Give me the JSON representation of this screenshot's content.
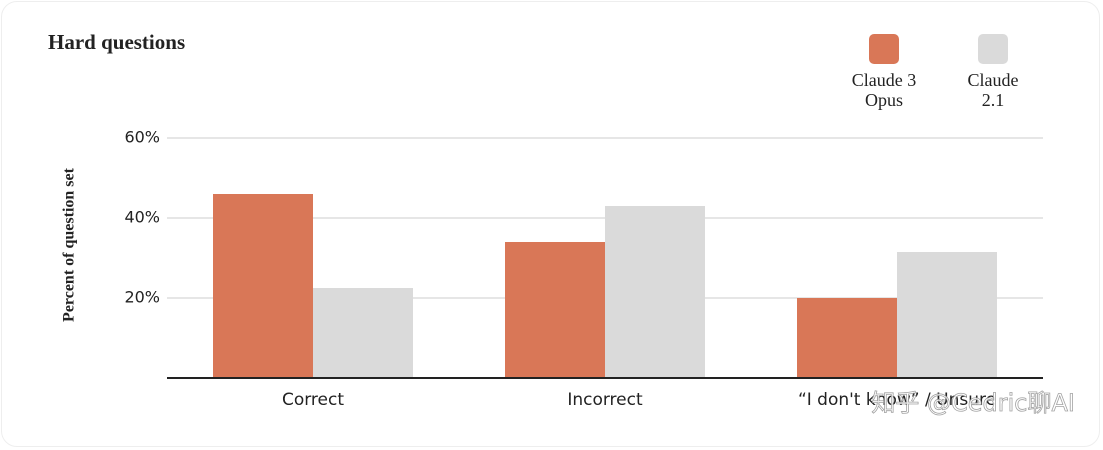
{
  "chart_data": {
    "type": "bar",
    "title": "Hard questions",
    "y_label": "Percent of question set",
    "categories": [
      "Correct",
      "Incorrect",
      "“I don't know” / Unsure"
    ],
    "series": [
      {
        "name": "Claude 3 Opus",
        "color": "#d97757",
        "values": [
          46,
          34,
          20
        ]
      },
      {
        "name": "Claude 2.1",
        "color": "#dadada",
        "values": [
          22.5,
          43,
          31.5
        ]
      }
    ],
    "ylim": [
      0,
      60
    ],
    "yticks": [
      {
        "value": 20,
        "label": "20%"
      },
      {
        "value": 40,
        "label": "40%"
      },
      {
        "value": 60,
        "label": "60%"
      }
    ],
    "grid": true,
    "legend": "top-right",
    "watermark": "知乎 @Cedric聊AI"
  }
}
